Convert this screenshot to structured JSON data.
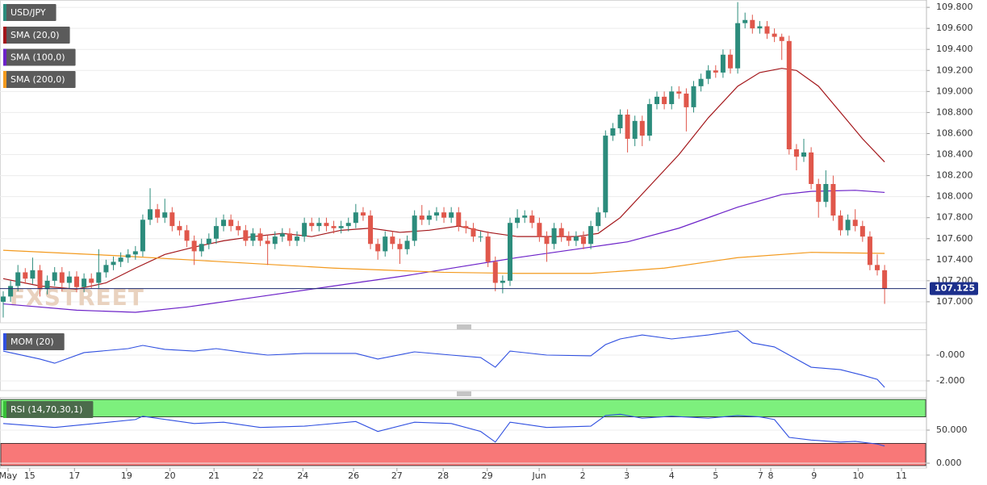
{
  "chart_data": [
    {
      "type": "candlestick",
      "title": "USD/JPY",
      "watermark": "FXSTREET",
      "grid": true,
      "up_color": "#2c8c7c",
      "down_color": "#e0574b",
      "xlim": [
        -0.44,
        125.7
      ],
      "xticks": [
        {
          "value": 0.66,
          "label": "May"
        },
        {
          "value": 3.6,
          "label": "15"
        },
        {
          "value": 9.7,
          "label": "17"
        },
        {
          "value": 16.8,
          "label": "19"
        },
        {
          "value": 22.7,
          "label": "20"
        },
        {
          "value": 28.7,
          "label": "21"
        },
        {
          "value": 34.7,
          "label": "22"
        },
        {
          "value": 40.8,
          "label": "24"
        },
        {
          "value": 47.7,
          "label": "26"
        },
        {
          "value": 53.6,
          "label": "27"
        },
        {
          "value": 59.9,
          "label": "28"
        },
        {
          "value": 65.9,
          "label": "29"
        },
        {
          "value": 72.97,
          "label": "Jun"
        },
        {
          "value": 78.9,
          "label": "2"
        },
        {
          "value": 84.9,
          "label": "3"
        },
        {
          "value": 91,
          "label": "4"
        },
        {
          "value": 97,
          "label": "5"
        },
        {
          "value": 103.1,
          "label": "7"
        },
        {
          "value": 104.5,
          "label": "8"
        },
        {
          "value": 110.4,
          "label": "9"
        },
        {
          "value": 116.4,
          "label": "10"
        },
        {
          "value": 122.3,
          "label": "11"
        }
      ],
      "ylim": [
        106.8,
        109.87
      ],
      "yticks": [
        {
          "value": 107.0,
          "label": "107.000"
        },
        {
          "value": 107.2,
          "label": "107.200"
        },
        {
          "value": 107.4,
          "label": "107.400"
        },
        {
          "value": 107.6,
          "label": "107.600"
        },
        {
          "value": 107.8,
          "label": "107.800"
        },
        {
          "value": 108.0,
          "label": "108.000"
        },
        {
          "value": 108.2,
          "label": "108.200"
        },
        {
          "value": 108.4,
          "label": "108.400"
        },
        {
          "value": 108.6,
          "label": "108.600"
        },
        {
          "value": 108.8,
          "label": "108.800"
        },
        {
          "value": 109.0,
          "label": "109.000"
        },
        {
          "value": 109.2,
          "label": "109.200"
        },
        {
          "value": 109.4,
          "label": "109.400"
        },
        {
          "value": 109.6,
          "label": "109.600"
        },
        {
          "value": 109.8,
          "label": "109.800"
        }
      ],
      "last_price": 107.125,
      "open": [
        107.0,
        107.05,
        107.15,
        107.28,
        107.22,
        107.3,
        107.12,
        107.2,
        107.28,
        107.18,
        107.24,
        107.14,
        107.22,
        107.18,
        107.28,
        107.35,
        107.38,
        107.42,
        107.45,
        107.48,
        107.78,
        107.88,
        107.8,
        107.85,
        107.72,
        107.68,
        107.58,
        107.48,
        107.55,
        107.6,
        107.72,
        107.78,
        107.72,
        107.68,
        107.58,
        107.65,
        107.58,
        107.55,
        107.62,
        107.65,
        107.58,
        107.62,
        107.75,
        107.72,
        107.75,
        107.72,
        107.7,
        107.72,
        107.75,
        107.85,
        107.82,
        107.55,
        107.48,
        107.62,
        107.55,
        107.5,
        107.58,
        107.82,
        107.78,
        107.82,
        107.85,
        107.8,
        107.85,
        107.72,
        107.7,
        107.62,
        107.62,
        107.38,
        107.18,
        107.2,
        107.75,
        107.8,
        107.82,
        107.75,
        107.62,
        107.55,
        107.7,
        107.62,
        107.58,
        107.62,
        107.55,
        107.72,
        107.85,
        108.58,
        108.65,
        108.78,
        108.55,
        108.72,
        108.58,
        108.88,
        108.95,
        108.88,
        109.0,
        108.98,
        108.85,
        109.05,
        109.12,
        109.2,
        109.18,
        109.35,
        109.22,
        109.65,
        109.68,
        109.6,
        109.62,
        109.55,
        109.52,
        109.48,
        108.45,
        108.38,
        108.42,
        108.12,
        107.95,
        108.12,
        107.82,
        107.68,
        107.78,
        107.72,
        107.62,
        107.35,
        107.3
      ],
      "high": [
        107.1,
        107.2,
        107.35,
        107.32,
        107.42,
        107.35,
        107.25,
        107.33,
        107.33,
        107.29,
        107.29,
        107.27,
        107.27,
        107.5,
        107.4,
        107.43,
        107.47,
        107.5,
        107.53,
        107.83,
        108.08,
        107.93,
        107.98,
        107.9,
        107.77,
        107.73,
        107.63,
        107.6,
        107.65,
        107.8,
        107.83,
        107.83,
        107.77,
        107.73,
        107.7,
        107.7,
        107.63,
        107.67,
        107.7,
        107.7,
        107.67,
        107.8,
        107.8,
        107.8,
        107.8,
        107.77,
        107.77,
        107.8,
        107.93,
        107.9,
        107.87,
        107.6,
        107.67,
        107.67,
        107.6,
        107.63,
        107.87,
        107.92,
        107.87,
        107.9,
        107.9,
        107.9,
        107.9,
        107.77,
        107.75,
        107.67,
        107.67,
        107.43,
        107.25,
        107.8,
        107.88,
        107.87,
        107.87,
        107.8,
        107.67,
        107.75,
        107.75,
        107.67,
        107.67,
        107.67,
        107.77,
        107.9,
        108.63,
        108.7,
        108.83,
        108.83,
        108.77,
        108.77,
        108.93,
        109.0,
        109.0,
        109.05,
        109.05,
        109.03,
        109.1,
        109.17,
        109.25,
        109.25,
        109.4,
        109.4,
        109.85,
        109.75,
        109.73,
        109.67,
        109.67,
        109.6,
        109.55,
        109.53,
        108.5,
        108.55,
        108.47,
        108.17,
        108.25,
        108.2,
        107.87,
        107.83,
        107.88,
        107.77,
        107.67,
        107.45,
        107.35
      ],
      "low": [
        106.85,
        107.0,
        107.1,
        107.17,
        107.17,
        107.05,
        107.07,
        107.15,
        107.1,
        107.13,
        107.09,
        107.09,
        107.13,
        107.13,
        107.23,
        107.3,
        107.33,
        107.37,
        107.4,
        107.43,
        107.73,
        107.75,
        107.75,
        107.67,
        107.63,
        107.52,
        107.35,
        107.43,
        107.5,
        107.55,
        107.67,
        107.67,
        107.63,
        107.53,
        107.53,
        107.53,
        107.35,
        107.5,
        107.57,
        107.53,
        107.53,
        107.57,
        107.67,
        107.67,
        107.67,
        107.65,
        107.65,
        107.67,
        107.7,
        107.77,
        107.5,
        107.4,
        107.43,
        107.5,
        107.36,
        107.45,
        107.53,
        107.73,
        107.73,
        107.77,
        107.75,
        107.75,
        107.67,
        107.65,
        107.57,
        107.57,
        107.33,
        107.1,
        107.08,
        107.15,
        107.7,
        107.75,
        107.7,
        107.57,
        107.38,
        107.5,
        107.57,
        107.53,
        107.53,
        107.5,
        107.5,
        107.67,
        107.8,
        108.53,
        108.6,
        108.42,
        108.48,
        108.48,
        108.53,
        108.83,
        108.83,
        108.83,
        108.93,
        108.62,
        108.8,
        109.0,
        109.07,
        109.13,
        109.13,
        109.17,
        109.17,
        109.6,
        109.55,
        109.55,
        109.5,
        109.47,
        109.3,
        108.4,
        108.25,
        108.33,
        108.07,
        107.8,
        107.9,
        107.77,
        107.63,
        107.63,
        107.67,
        107.57,
        107.3,
        107.25,
        106.98
      ],
      "close": [
        107.05,
        107.15,
        107.28,
        107.22,
        107.3,
        107.12,
        107.2,
        107.28,
        107.18,
        107.24,
        107.14,
        107.22,
        107.18,
        107.28,
        107.35,
        107.38,
        107.42,
        107.45,
        107.48,
        107.78,
        107.88,
        107.8,
        107.85,
        107.72,
        107.68,
        107.58,
        107.48,
        107.55,
        107.6,
        107.72,
        107.78,
        107.72,
        107.68,
        107.58,
        107.65,
        107.58,
        107.55,
        107.62,
        107.65,
        107.58,
        107.62,
        107.75,
        107.72,
        107.75,
        107.72,
        107.7,
        107.72,
        107.75,
        107.85,
        107.82,
        107.55,
        107.48,
        107.62,
        107.55,
        107.5,
        107.58,
        107.82,
        107.78,
        107.82,
        107.85,
        107.8,
        107.85,
        107.72,
        107.7,
        107.62,
        107.62,
        107.38,
        107.18,
        107.2,
        107.75,
        107.8,
        107.82,
        107.75,
        107.62,
        107.55,
        107.7,
        107.62,
        107.58,
        107.62,
        107.55,
        107.72,
        107.85,
        108.58,
        108.65,
        108.78,
        108.55,
        108.72,
        108.58,
        108.88,
        108.95,
        108.88,
        109.0,
        108.98,
        108.85,
        109.05,
        109.12,
        109.2,
        109.18,
        109.35,
        109.22,
        109.65,
        109.68,
        109.6,
        109.62,
        109.55,
        109.52,
        109.48,
        108.45,
        108.38,
        108.42,
        108.12,
        107.95,
        108.12,
        107.82,
        107.68,
        107.78,
        107.72,
        107.62,
        107.35,
        107.3,
        107.125
      ],
      "series": [
        {
          "name": "SMA (20,0)",
          "color": "#a3161a",
          "x": [
            0,
            5,
            10,
            14,
            18,
            22,
            26,
            30,
            34,
            38,
            42,
            46,
            50,
            54,
            58,
            62,
            66,
            70,
            74,
            78,
            81,
            84,
            88,
            92,
            96,
            100,
            103,
            106,
            108,
            111,
            114,
            117,
            120
          ],
          "values": [
            107.22,
            107.15,
            107.12,
            107.18,
            107.32,
            107.45,
            107.52,
            107.58,
            107.62,
            107.65,
            107.62,
            107.68,
            107.7,
            107.66,
            107.68,
            107.72,
            107.66,
            107.62,
            107.62,
            107.62,
            107.65,
            107.8,
            108.1,
            108.4,
            108.75,
            109.05,
            109.18,
            109.22,
            109.2,
            109.05,
            108.8,
            108.55,
            108.33
          ]
        },
        {
          "name": "SMA (100,0)",
          "color": "#6c22c8",
          "x": [
            0,
            10,
            18,
            25,
            35,
            45,
            55,
            62,
            70,
            78,
            85,
            92,
            100,
            106,
            110,
            116,
            120
          ],
          "values": [
            106.98,
            106.92,
            106.9,
            106.95,
            107.05,
            107.15,
            107.25,
            107.33,
            107.42,
            107.5,
            107.57,
            107.7,
            107.9,
            108.02,
            108.05,
            108.06,
            108.04
          ]
        },
        {
          "name": "SMA (200,0)",
          "color": "#f39a1e",
          "x": [
            0,
            15,
            30,
            45,
            60,
            70,
            80,
            90,
            100,
            110,
            120
          ],
          "values": [
            107.49,
            107.44,
            107.38,
            107.32,
            107.28,
            107.27,
            107.27,
            107.32,
            107.42,
            107.47,
            107.46
          ]
        }
      ]
    },
    {
      "type": "line",
      "title": "MOM (20)",
      "color": "#2f4fe0",
      "ylim": [
        -2.75,
        2
      ],
      "yticks": [
        {
          "value": 0,
          "label": "-0.000"
        },
        {
          "value": -2,
          "label": "-2.000"
        }
      ],
      "x": [
        0,
        5,
        7,
        11,
        17,
        19,
        22,
        26,
        29,
        33,
        36,
        41,
        48,
        51,
        56,
        61,
        65,
        67,
        69,
        74,
        80,
        82,
        84,
        87,
        91,
        96,
        100,
        102,
        105,
        108,
        110,
        114,
        117,
        119,
        120
      ],
      "values": [
        0.31,
        -0.31,
        -0.63,
        0.19,
        0.5,
        0.75,
        0.44,
        0.31,
        0.5,
        0.19,
        0,
        0.13,
        0.13,
        -0.31,
        0.25,
        0,
        -0.19,
        -0.94,
        0.31,
        0,
        -0.06,
        0.81,
        1.25,
        1.56,
        1.25,
        1.56,
        1.88,
        0.94,
        0.63,
        -0.31,
        -0.94,
        -1.13,
        -1.56,
        -1.88,
        -2.5
      ]
    },
    {
      "type": "line",
      "title": "RSI (14,70,30,1)",
      "color": "#2f4fe0",
      "ylim": [
        -7.3,
        100
      ],
      "upper": 70,
      "lower": 30,
      "yticks": [
        {
          "value": 50,
          "label": "50.000"
        },
        {
          "value": 0,
          "label": "0.000"
        }
      ],
      "x": [
        0,
        7,
        18,
        19,
        26,
        30,
        35,
        41,
        48,
        51,
        56,
        61,
        65,
        67,
        69,
        74,
        80,
        82,
        84,
        87,
        91,
        96,
        100,
        103,
        105,
        107,
        110,
        114,
        116,
        119,
        120
      ],
      "values": [
        60,
        54,
        66,
        71,
        60,
        62,
        54,
        56,
        63,
        48,
        62,
        60,
        48,
        32,
        62,
        54,
        56,
        72,
        74,
        68,
        71,
        68,
        72,
        70,
        66,
        39,
        35,
        32,
        33,
        29,
        26
      ]
    }
  ]
}
